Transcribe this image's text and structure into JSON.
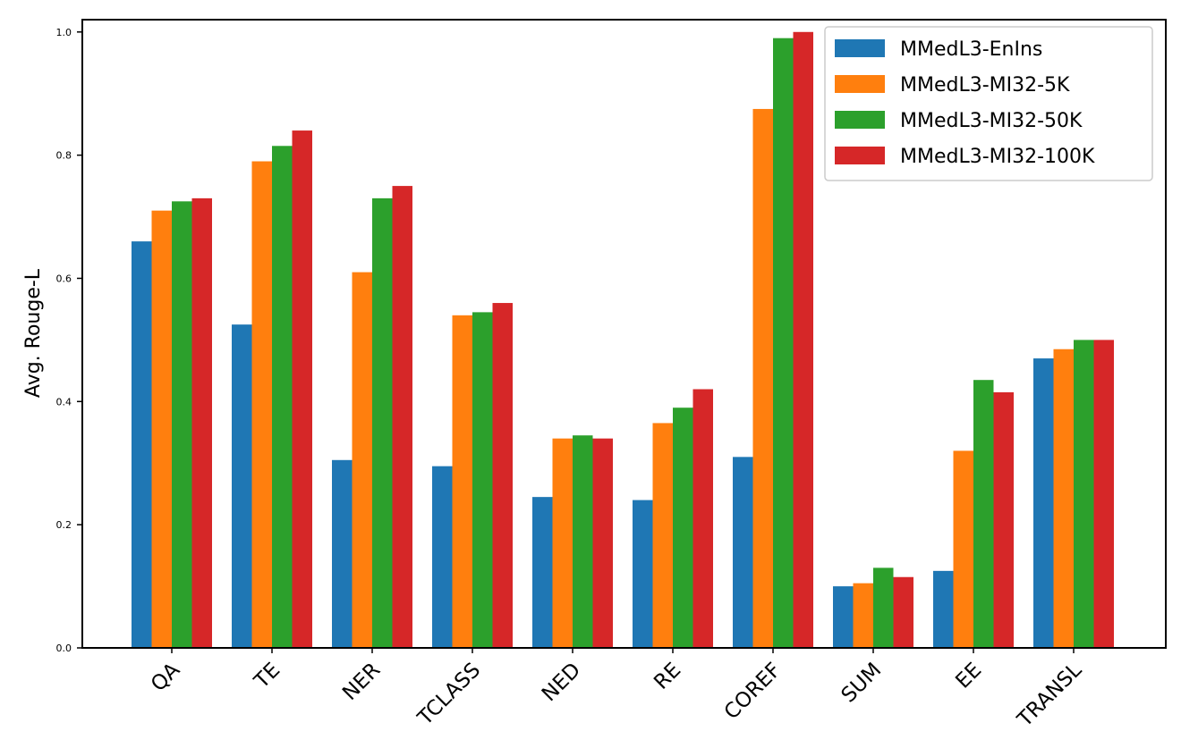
{
  "chart_data": {
    "type": "bar",
    "title": "",
    "xlabel": "",
    "ylabel": "Avg. Rouge-L",
    "ylim": [
      0,
      1.02
    ],
    "yticks": [
      "0.0",
      "0.2",
      "0.4",
      "0.6",
      "0.8",
      "1.0"
    ],
    "categories": [
      "QA",
      "TE",
      "NER",
      "TCLASS",
      "NED",
      "RE",
      "COREF",
      "SUM",
      "EE",
      "TRANSL"
    ],
    "series": [
      {
        "name": "MMedL3-EnIns",
        "color": "#1f77b4",
        "values": [
          0.66,
          0.525,
          0.305,
          0.295,
          0.245,
          0.24,
          0.31,
          0.1,
          0.125,
          0.47
        ]
      },
      {
        "name": "MMedL3-MI32-5K",
        "color": "#ff7f0e",
        "values": [
          0.71,
          0.79,
          0.61,
          0.54,
          0.34,
          0.365,
          0.875,
          0.105,
          0.32,
          0.485
        ]
      },
      {
        "name": "MMedL3-MI32-50K",
        "color": "#2ca02c",
        "values": [
          0.725,
          0.815,
          0.73,
          0.545,
          0.345,
          0.39,
          0.99,
          0.13,
          0.435,
          0.5
        ]
      },
      {
        "name": "MMedL3-MI32-100K",
        "color": "#d62728",
        "values": [
          0.73,
          0.84,
          0.75,
          0.56,
          0.34,
          0.42,
          1.0,
          0.115,
          0.415,
          0.5
        ]
      }
    ],
    "grid": false,
    "legend": "top-right"
  }
}
